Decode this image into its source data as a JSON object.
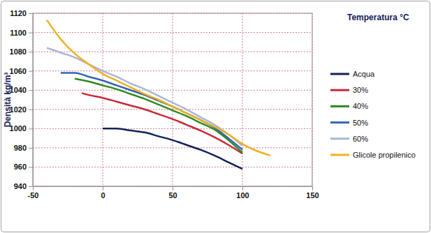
{
  "chart_data": {
    "type": "line",
    "x_label": "Temperatura °C",
    "y_label": "Densità kg/m³",
    "xlim": [
      -50,
      150
    ],
    "xticks": [
      -50,
      0,
      50,
      100,
      150
    ],
    "ylim": [
      940,
      1120
    ],
    "yticks": [
      940,
      960,
      980,
      1000,
      1020,
      1040,
      1060,
      1080,
      1100,
      1120
    ],
    "grid": true,
    "legend": "right",
    "series": [
      {
        "name": "Acqua",
        "color": "#14205a",
        "x": [
          0,
          10,
          20,
          30,
          40,
          50,
          60,
          70,
          80,
          90,
          100
        ],
        "values": [
          1000,
          1000,
          998,
          996,
          992,
          988,
          983,
          978,
          972,
          965,
          958
        ]
      },
      {
        "name": "30%",
        "color": "#c8283c",
        "x": [
          -15,
          -10,
          0,
          10,
          20,
          30,
          40,
          50,
          60,
          70,
          80,
          90,
          100
        ],
        "values": [
          1037,
          1035,
          1032,
          1028,
          1024,
          1020,
          1015,
          1010,
          1004,
          998,
          991,
          983,
          974
        ]
      },
      {
        "name": "40%",
        "color": "#2e8b1e",
        "x": [
          -20,
          -10,
          0,
          10,
          20,
          30,
          40,
          50,
          60,
          70,
          80,
          90,
          100
        ],
        "values": [
          1052,
          1049,
          1045,
          1041,
          1036,
          1031,
          1025,
          1019,
          1013,
          1006,
          999,
          988,
          975
        ]
      },
      {
        "name": "50%",
        "color": "#3563b4",
        "x": [
          -30,
          -20,
          -10,
          0,
          10,
          20,
          30,
          40,
          50,
          60,
          70,
          80,
          90,
          100
        ],
        "values": [
          1058,
          1058,
          1054,
          1050,
          1045,
          1040,
          1035,
          1029,
          1023,
          1016,
          1009,
          1001,
          990,
          978
        ]
      },
      {
        "name": "60%",
        "color": "#a9b5db",
        "x": [
          -40,
          -30,
          -20,
          -10,
          0,
          10,
          20,
          30,
          40,
          50,
          60,
          70,
          80,
          90,
          100
        ],
        "values": [
          1084,
          1079,
          1074,
          1067,
          1060,
          1054,
          1047,
          1041,
          1034,
          1027,
          1020,
          1012,
          1004,
          994,
          982
        ]
      },
      {
        "name": "Glicole propilenico",
        "color": "#f0b020",
        "x": [
          -40,
          -30,
          -20,
          -10,
          0,
          10,
          20,
          30,
          40,
          50,
          60,
          70,
          80,
          90,
          100,
          110,
          120
        ],
        "values": [
          1113,
          1093,
          1078,
          1067,
          1057,
          1050,
          1043,
          1036,
          1030,
          1023,
          1016,
          1009,
          1002,
          994,
          984,
          977,
          972
        ]
      }
    ]
  }
}
